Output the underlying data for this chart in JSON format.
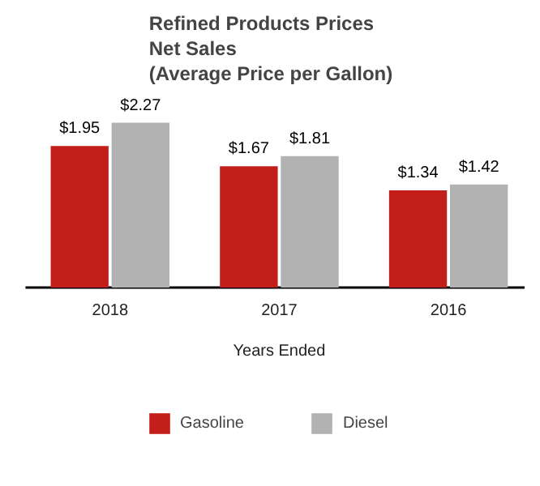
{
  "chart_data": {
    "type": "bar",
    "title": "Refined Products Prices\nNet Sales\n(Average Price per Gallon)",
    "xlabel": "Years Ended",
    "categories": [
      "2018",
      "2017",
      "2016"
    ],
    "series": [
      {
        "name": "Gasoline",
        "color": "#c41e1a",
        "values": [
          1.95,
          1.67,
          1.34
        ],
        "value_labels": [
          "$1.95",
          "$1.67",
          "$1.34"
        ]
      },
      {
        "name": "Diesel",
        "color": "#b2b2b2",
        "values": [
          2.27,
          1.81,
          1.42
        ],
        "value_labels": [
          "$2.27",
          "$1.81",
          "$1.42"
        ]
      }
    ],
    "legend": "bottom"
  }
}
